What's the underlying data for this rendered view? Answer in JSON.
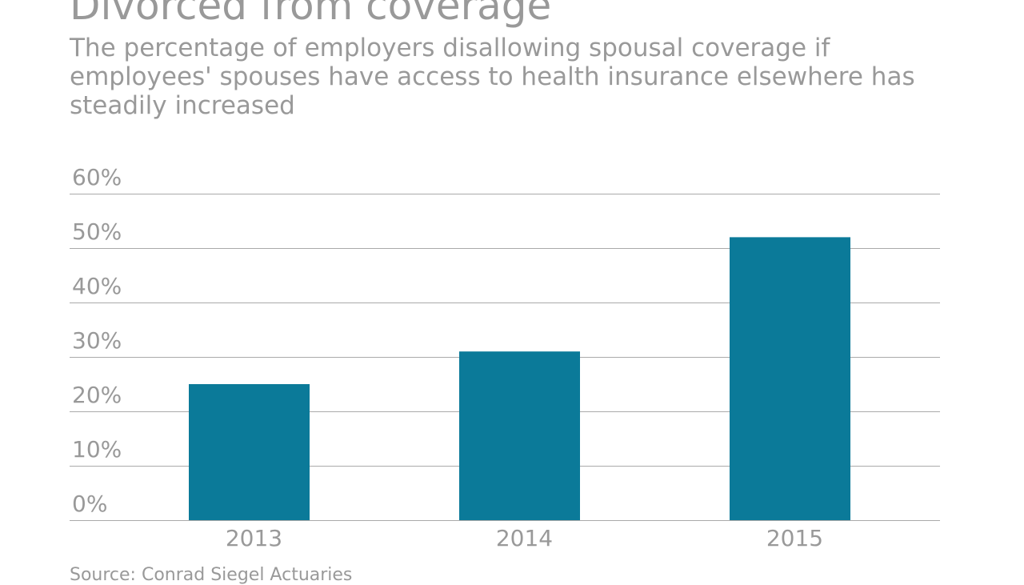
{
  "chart_data": {
    "type": "bar",
    "title": "Divorced from coverage",
    "subtitle": "The percentage of employers disallowing spousal coverage if employees' spouses have access to health insurance elsewhere has steadily increased",
    "source": "Source: Conrad Siegel Actuaries",
    "categories": [
      "2013",
      "2014",
      "2015"
    ],
    "values": [
      25,
      31,
      52
    ],
    "ylim": [
      0,
      60
    ],
    "yticks": [
      0,
      10,
      20,
      30,
      40,
      50,
      60
    ],
    "ytick_labels": [
      "0%",
      "10%",
      "20%",
      "30%",
      "40%",
      "50%",
      "60%"
    ],
    "xlabel": "",
    "ylabel": "",
    "grid": true,
    "bar_color": "#0b7a99",
    "grid_color": "#aaaaaa"
  }
}
